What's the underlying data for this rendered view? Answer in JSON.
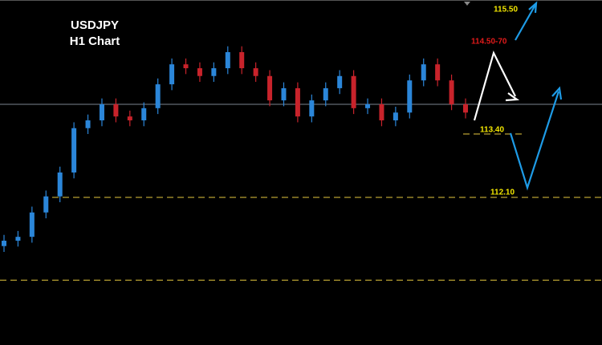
{
  "chart_data": {
    "type": "candlestick",
    "title": "USDJPY",
    "subtitle": "H1 Chart",
    "ylim": [
      109.07,
      116.15
    ],
    "up_color": "#2b86d9",
    "down_color": "#c8232b",
    "open": [
      111.1,
      111.21,
      111.29,
      111.79,
      112.12,
      112.61,
      113.52,
      113.68,
      114.01,
      113.76,
      113.68,
      113.93,
      114.42,
      114.83,
      114.75,
      114.59,
      114.75,
      115.08,
      114.75,
      114.59,
      114.09,
      114.34,
      113.76,
      114.09,
      114.34,
      114.59,
      113.93,
      114.01,
      113.68,
      113.84,
      114.5,
      114.83,
      114.5,
      114.01
    ],
    "high": [
      111.33,
      111.41,
      111.91,
      112.24,
      112.73,
      113.64,
      113.8,
      114.13,
      114.13,
      113.88,
      114.05,
      114.54,
      114.95,
      114.95,
      114.87,
      114.87,
      115.2,
      115.2,
      114.87,
      114.71,
      114.46,
      114.46,
      114.21,
      114.46,
      114.71,
      114.71,
      114.13,
      114.13,
      113.96,
      114.62,
      114.95,
      114.95,
      114.62,
      114.13
    ],
    "low": [
      110.98,
      111.09,
      111.17,
      111.67,
      112.0,
      112.49,
      113.4,
      113.56,
      113.64,
      113.56,
      113.56,
      113.81,
      114.3,
      114.63,
      114.47,
      114.47,
      114.63,
      114.63,
      114.47,
      113.97,
      113.97,
      113.64,
      113.64,
      113.97,
      114.22,
      113.81,
      113.81,
      113.56,
      113.56,
      113.72,
      114.38,
      114.38,
      113.89,
      113.72
    ],
    "close": [
      111.21,
      111.29,
      111.79,
      112.12,
      112.61,
      113.52,
      113.68,
      114.01,
      113.76,
      113.68,
      113.93,
      114.42,
      114.83,
      114.75,
      114.59,
      114.75,
      115.08,
      114.75,
      114.59,
      114.09,
      114.34,
      113.76,
      114.09,
      114.34,
      114.59,
      113.93,
      114.01,
      113.68,
      113.84,
      114.5,
      114.83,
      114.5,
      114.01,
      113.84
    ],
    "price_line": 114.01,
    "levels": [
      113.4,
      112.1,
      110.4
    ],
    "level_color": "#b8a032",
    "annotations": [
      {
        "label": "115.50",
        "color": "#f2e600"
      },
      {
        "label": "114.50-70",
        "color": "#e01a1a"
      },
      {
        "label": "113.40",
        "color": "#f2e600"
      },
      {
        "label": "112.10",
        "color": "#f2e600"
      }
    ]
  }
}
